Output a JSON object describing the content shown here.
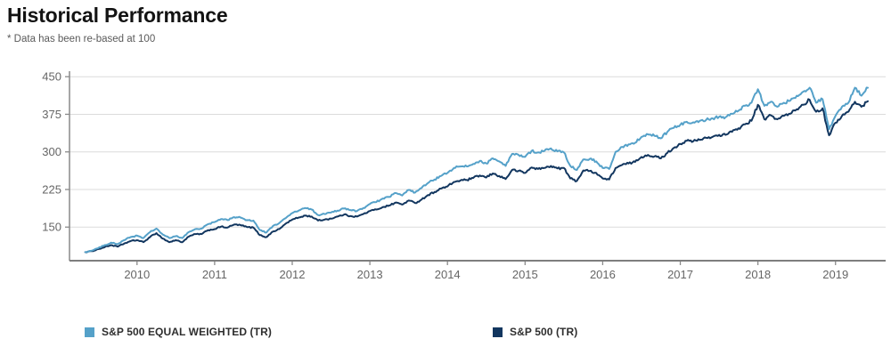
{
  "header": {
    "title": "Historical Performance",
    "note": "* Data has been re-based at 100"
  },
  "legend": [
    {
      "label": "S&P 500 EQUAL WEIGHTED (TR)",
      "color": "#55A1C9"
    },
    {
      "label": "S&P 500 (TR)",
      "color": "#12365F"
    }
  ],
  "colors": {
    "equal_weighted_line": "#55A1C9",
    "sp500_line": "#12365F",
    "gridline": "#DBDBDB",
    "axis": "#8A8A8A",
    "tick_label": "#666666"
  },
  "chart_data": {
    "type": "line",
    "title": "Historical Performance",
    "note": "* Data has been re-based at 100",
    "rebase_value": 100,
    "grid": true,
    "legend_position": "bottom",
    "xlabel": "",
    "ylabel": "",
    "x_ticks": [
      2010,
      2011,
      2012,
      2013,
      2014,
      2015,
      2016,
      2017,
      2018,
      2019
    ],
    "y_ticks": [
      150,
      225,
      300,
      375,
      450
    ],
    "xlim": [
      2009.13,
      2019.6
    ],
    "ylim": [
      83,
      461
    ],
    "x_start": 2009.3333,
    "x_step": 0.083333,
    "series": [
      {
        "name": "S&P 500 EQUAL WEIGHTED (TR)",
        "color": "#55A1C9",
        "values": [
          100,
          103,
          108,
          114,
          119,
          116,
          124,
          130,
          133,
          128,
          140,
          147,
          135,
          128,
          132,
          128,
          140,
          146,
          147,
          156,
          160,
          166,
          164,
          170,
          169,
          164,
          163,
          144,
          139,
          152,
          158,
          168,
          178,
          183,
          188,
          185,
          174,
          176,
          179,
          183,
          187,
          184,
          182,
          188,
          196,
          200,
          207,
          210,
          218,
          213,
          224,
          219,
          228,
          238,
          245,
          252,
          258,
          268,
          271,
          271,
          276,
          282,
          277,
          287,
          281,
          272,
          296,
          294,
          290,
          302,
          299,
          302,
          307,
          301,
          299,
          272,
          264,
          285,
          286,
          281,
          268,
          266,
          300,
          310,
          315,
          318,
          330,
          335,
          332,
          327,
          340,
          348,
          354,
          360,
          359,
          362,
          364,
          367,
          370,
          369,
          376,
          382,
          392,
          398,
          425,
          392,
          400,
          390,
          398,
          402,
          412,
          420,
          428,
          398,
          405,
          345,
          372,
          390,
          398,
          428,
          412,
          428
        ]
      },
      {
        "name": "S&P 500 (TR)",
        "color": "#12365F",
        "values": [
          100,
          102,
          106,
          110,
          114,
          111,
          117,
          122,
          124,
          120,
          130,
          138,
          127,
          120,
          124,
          120,
          131,
          136,
          136,
          144,
          146,
          151,
          149,
          155,
          154,
          150,
          149,
          134,
          130,
          141,
          146,
          157,
          165,
          169,
          173,
          171,
          163,
          165,
          167,
          171,
          175,
          172,
          171,
          176,
          182,
          185,
          190,
          193,
          199,
          195,
          203,
          198,
          205,
          214,
          220,
          227,
          231,
          240,
          243,
          244,
          248,
          253,
          249,
          257,
          252,
          246,
          264,
          262,
          258,
          269,
          266,
          268,
          272,
          267,
          268,
          247,
          242,
          263,
          262,
          258,
          247,
          245,
          268,
          274,
          277,
          280,
          290,
          294,
          291,
          287,
          298,
          308,
          316,
          322,
          321,
          324,
          328,
          330,
          334,
          334,
          340,
          347,
          355,
          362,
          394,
          365,
          373,
          365,
          372,
          376,
          385,
          394,
          404,
          380,
          387,
          333,
          358,
          372,
          380,
          400,
          390,
          401
        ]
      }
    ]
  }
}
